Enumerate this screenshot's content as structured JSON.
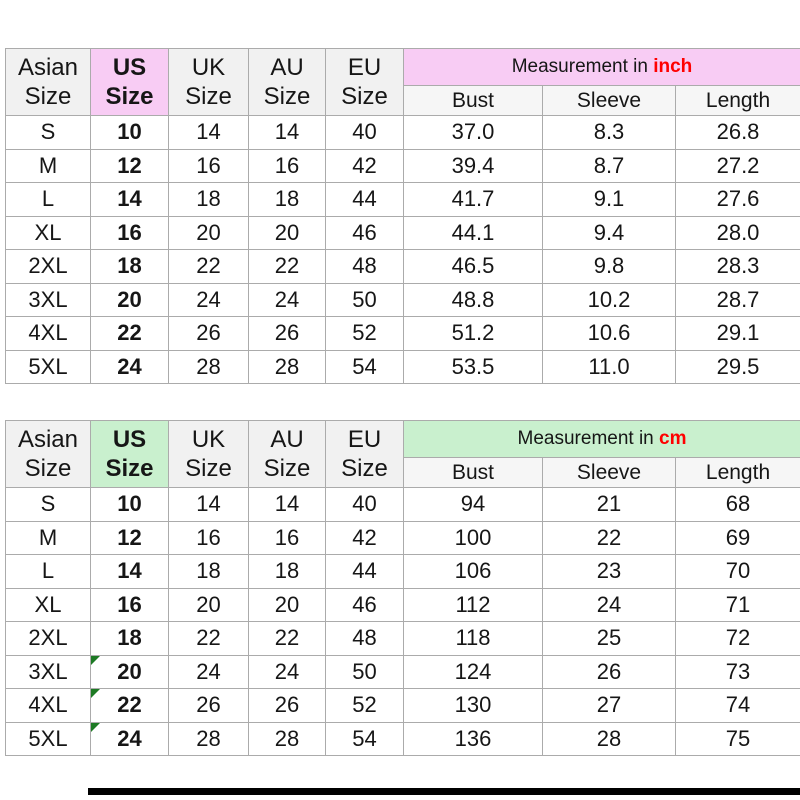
{
  "colors": {
    "inch_accent": "#f8ccf4",
    "cm_accent": "#c9f0ce",
    "unit_text": "#ff0000",
    "grid_line": "#ababab",
    "header_fill": "#f1f1f1",
    "flag_green": "#1d7a24",
    "bottom_bar": "#000000"
  },
  "chart_data": [
    {
      "type": "table",
      "title": "Measurement in inch",
      "measurement_label": "Measurement in",
      "unit": "inch",
      "size_headers": [
        "Asian Size",
        "US Size",
        "UK Size",
        "AU Size",
        "EU Size"
      ],
      "measure_headers": [
        "Bust",
        "Sleeve",
        "Length"
      ],
      "columns": [
        "Asian Size",
        "US Size",
        "UK Size",
        "AU Size",
        "EU Size",
        "Bust",
        "Sleeve",
        "Length"
      ],
      "rows": [
        [
          "S",
          "10",
          "14",
          "14",
          "40",
          "37.0",
          "8.3",
          "26.8"
        ],
        [
          "M",
          "12",
          "16",
          "16",
          "42",
          "39.4",
          "8.7",
          "27.2"
        ],
        [
          "L",
          "14",
          "18",
          "18",
          "44",
          "41.7",
          "9.1",
          "27.6"
        ],
        [
          "XL",
          "16",
          "20",
          "20",
          "46",
          "44.1",
          "9.4",
          "28.0"
        ],
        [
          "2XL",
          "18",
          "22",
          "22",
          "48",
          "46.5",
          "9.8",
          "28.3"
        ],
        [
          "3XL",
          "20",
          "24",
          "24",
          "50",
          "48.8",
          "10.2",
          "28.7"
        ],
        [
          "4XL",
          "22",
          "26",
          "26",
          "52",
          "51.2",
          "10.6",
          "29.1"
        ],
        [
          "5XL",
          "24",
          "28",
          "28",
          "54",
          "53.5",
          "11.0",
          "29.5"
        ]
      ],
      "flagged_rows": []
    },
    {
      "type": "table",
      "title": "Measurement in cm",
      "measurement_label": "Measurement in",
      "unit": "cm",
      "size_headers": [
        "Asian Size",
        "US Size",
        "UK Size",
        "AU Size",
        "EU Size"
      ],
      "measure_headers": [
        "Bust",
        "Sleeve",
        "Length"
      ],
      "columns": [
        "Asian Size",
        "US Size",
        "UK Size",
        "AU Size",
        "EU Size",
        "Bust",
        "Sleeve",
        "Length"
      ],
      "rows": [
        [
          "S",
          "10",
          "14",
          "14",
          "40",
          "94",
          "21",
          "68"
        ],
        [
          "M",
          "12",
          "16",
          "16",
          "42",
          "100",
          "22",
          "69"
        ],
        [
          "L",
          "14",
          "18",
          "18",
          "44",
          "106",
          "23",
          "70"
        ],
        [
          "XL",
          "16",
          "20",
          "20",
          "46",
          "112",
          "24",
          "71"
        ],
        [
          "2XL",
          "18",
          "22",
          "22",
          "48",
          "118",
          "25",
          "72"
        ],
        [
          "3XL",
          "20",
          "24",
          "24",
          "50",
          "124",
          "26",
          "73"
        ],
        [
          "4XL",
          "22",
          "26",
          "26",
          "52",
          "130",
          "27",
          "74"
        ],
        [
          "5XL",
          "24",
          "28",
          "28",
          "54",
          "136",
          "28",
          "75"
        ]
      ],
      "flagged_rows": [
        5,
        6,
        7
      ]
    }
  ]
}
